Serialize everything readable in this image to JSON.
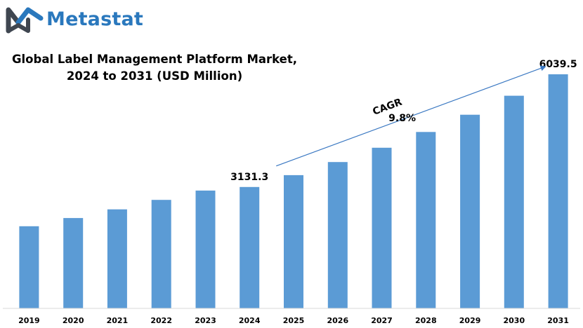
{
  "brand": {
    "name": "Metastat",
    "accent": "#2a78bd",
    "icon": "metastat-logo-icon"
  },
  "chart_data": {
    "type": "bar",
    "title_line1": "Global Label Management Platform Market,",
    "title_line2": "2024 to 2031 (USD Million)",
    "categories": [
      "2019",
      "2020",
      "2021",
      "2022",
      "2023",
      "2024",
      "2025",
      "2026",
      "2027",
      "2028",
      "2029",
      "2030",
      "2031"
    ],
    "values": [
      2120,
      2330,
      2555,
      2800,
      3040,
      3131.3,
      3438,
      3775,
      4145,
      4551,
      4997,
      5487,
      6039.5
    ],
    "data_labels": {
      "2024": "3131.3",
      "2031": "6039.5"
    },
    "ylim": [
      0,
      6600
    ],
    "bar_color": "#5b9bd5",
    "arrow_color": "#3a78c2",
    "annotation": {
      "label": "CAGR",
      "value": "9.8%",
      "from": "2024",
      "to": "2031"
    },
    "grid": false,
    "legend": "none"
  }
}
